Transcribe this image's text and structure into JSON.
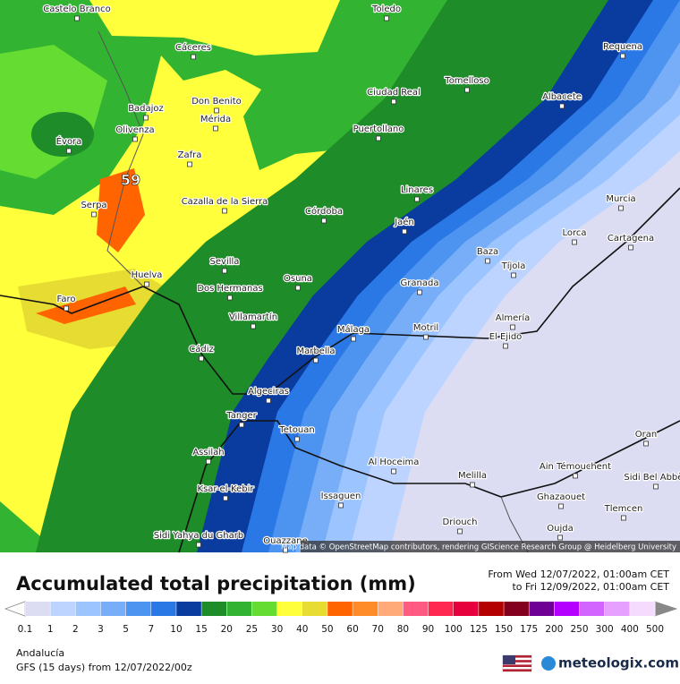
{
  "map": {
    "marker": "59",
    "cities": [
      "Castelo Branco",
      "Toledo",
      "Cáceres",
      "Requena",
      "Don Benito",
      "Ciudad Real",
      "Tomelloso",
      "Badajoz",
      "Mérida",
      "Albacete",
      "Olivenza",
      "Puertollano",
      "Évora",
      "Zafra",
      "Cazalla de la Sierra",
      "Linares",
      "Murcia",
      "Serpa",
      "Córdoba",
      "Jaén",
      "Lorca",
      "Cartagena",
      "Baza",
      "Sevilla",
      "Tíjola",
      "Huelva",
      "Osuna",
      "Dos Hermanas",
      "Granada",
      "Faro",
      "Villamartín",
      "Almería",
      "Málaga",
      "Motril",
      "El Ejido",
      "Cádiz",
      "Marbella",
      "Algeciras",
      "Tanger",
      "Tetouan",
      "Assilah",
      "Oran",
      "Al Hoceima",
      "Melilla",
      "Ain Témouchent",
      "Sidi Bel Abbès",
      "Ksar-el-Kebir",
      "Issaguen",
      "Ghazaouet",
      "Tlemcen",
      "Driouch",
      "Oujda",
      "Sidi Yahya du Gharb",
      "Ouazzane"
    ],
    "attribution": "Map data © OpenStreetMap contributors, rendering GIScience Research Group @ Heidelberg University"
  },
  "header": {
    "title": "Accumulated total precipitation (mm)",
    "from": "From Wed 12/07/2022, 01:00am CET",
    "to": "to Fri 12/09/2022, 01:00am CET"
  },
  "legend": {
    "labels": [
      0.1,
      1,
      2,
      3,
      5,
      7,
      10,
      15,
      20,
      25,
      30,
      40,
      50,
      60,
      70,
      80,
      90,
      100,
      125,
      150,
      175,
      200,
      250,
      300,
      400,
      500
    ],
    "colors": [
      "#dcdcf2",
      "#bcd4ff",
      "#9cc4ff",
      "#78aef8",
      "#4c94f0",
      "#2a78e6",
      "#0a3ca0",
      "#1e8c28",
      "#32b432",
      "#64dc32",
      "#ffff3c",
      "#e6dc32",
      "#ff6400",
      "#ff8c28",
      "#ffaa78",
      "#ff5a82",
      "#ff2850",
      "#e6003c",
      "#b40000",
      "#82001e",
      "#6e0096",
      "#b400ff",
      "#d264ff",
      "#e6a0ff",
      "#f5dcff"
    ]
  },
  "footer": {
    "region": "Andalucía",
    "model": "GFS (15 days) from 12/07/2022/00z",
    "brand": "meteologix.com"
  }
}
